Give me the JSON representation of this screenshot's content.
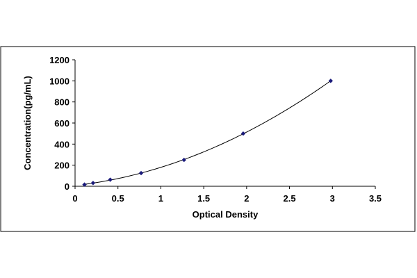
{
  "chart_data": {
    "type": "scatter",
    "title": "",
    "xlabel": "Optical Density",
    "ylabel": "Concentration(pg/mL)",
    "xlim": [
      0,
      3.5
    ],
    "ylim": [
      0,
      1200
    ],
    "xticks": [
      "0",
      "0.5",
      "1",
      "1.5",
      "2",
      "2.5",
      "3",
      "3.5"
    ],
    "yticks": [
      "0",
      "200",
      "400",
      "600",
      "800",
      "1000",
      "1200"
    ],
    "grid": false,
    "legend": "none",
    "trendline": "polynomial",
    "series": [
      {
        "x": [
          0.11,
          0.21,
          0.41,
          0.77,
          1.27,
          1.96,
          2.98
        ],
        "y": [
          15.6,
          31.2,
          62.5,
          125,
          250,
          500,
          1000
        ]
      }
    ],
    "colors": {
      "marker": "#1a1a7a",
      "curve": "#000000",
      "axis": "#000000"
    }
  }
}
